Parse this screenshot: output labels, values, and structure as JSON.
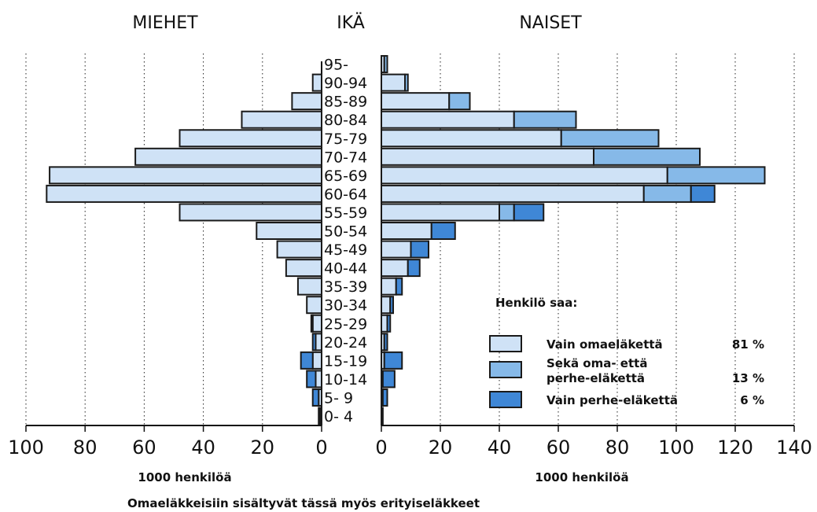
{
  "chart_data": {
    "type": "bar",
    "orientation": "population-pyramid",
    "headers": {
      "left": "MIEHET",
      "center": "IKÄ",
      "right": "NAISET"
    },
    "age_groups": [
      "0- 4",
      "5- 9",
      "10-14",
      "15-19",
      "20-24",
      "25-29",
      "30-34",
      "35-39",
      "40-44",
      "45-49",
      "50-54",
      "55-59",
      "60-64",
      "65-69",
      "70-74",
      "75-79",
      "80-84",
      "85-89",
      "90-94",
      "95-"
    ],
    "x_unit_label": "1000 henkilöä",
    "men_axis": {
      "ticks": [
        0,
        20,
        40,
        60,
        80,
        100
      ],
      "tick_labels": [
        "0",
        "20",
        "40",
        "60",
        "80",
        "100"
      ],
      "xlim": [
        0,
        100
      ],
      "grid": true
    },
    "women_axis": {
      "ticks": [
        0,
        20,
        40,
        60,
        80,
        100,
        120,
        140
      ],
      "tick_labels": [
        "0",
        "20",
        "40",
        "60",
        "80",
        "100",
        "120",
        "140"
      ],
      "xlim": [
        0,
        140
      ],
      "grid": true
    },
    "series_colors": [
      "#cfe2f6",
      "#86b9e8",
      "#3f87d6"
    ],
    "men": {
      "series": [
        {
          "name": "Vain omaeläkettä",
          "values": [
            0.5,
            1,
            2,
            3,
            2,
            3,
            5,
            8,
            12,
            15,
            22,
            48,
            93,
            92,
            63,
            48,
            27,
            10,
            3,
            0
          ]
        },
        {
          "name": "Sekä oma- että perhe-eläkettä",
          "values": [
            0,
            0,
            0,
            0,
            0,
            0,
            0,
            0,
            0,
            0,
            0,
            0,
            0,
            0,
            0,
            0,
            0,
            0,
            0,
            0
          ]
        },
        {
          "name": "Vain perhe-eläkettä",
          "values": [
            0.5,
            2,
            3,
            4,
            1,
            0.5,
            0,
            0,
            0,
            0,
            0,
            0,
            0,
            0,
            0,
            0,
            0,
            0,
            0,
            0
          ]
        }
      ]
    },
    "women": {
      "series": [
        {
          "name": "Vain omaeläkettä",
          "values": [
            0,
            0.5,
            0.5,
            1,
            1,
            2,
            3,
            5,
            9,
            10,
            17,
            40,
            89,
            97,
            72,
            61,
            45,
            23,
            8,
            1
          ]
        },
        {
          "name": "Sekä oma- että perhe-eläkettä",
          "values": [
            0,
            0,
            0,
            0,
            0,
            0,
            0,
            0,
            0,
            0,
            0,
            5,
            16,
            33,
            36,
            33,
            21,
            7,
            1,
            1
          ]
        },
        {
          "name": "Vain perhe-eläkettä",
          "values": [
            0.5,
            1.5,
            4,
            6,
            1,
            1,
            1,
            2,
            4,
            6,
            8,
            10,
            8,
            0,
            0,
            0,
            0,
            0,
            0,
            0
          ]
        }
      ]
    },
    "legend": {
      "title": "Henkilö saa:",
      "position": "bottom-right",
      "entries": [
        {
          "line1": "Vain omaeläkettä",
          "line2": "",
          "pct": "81 %"
        },
        {
          "line1": "Sekä oma- että",
          "line2": "perhe-eläkettä",
          "pct": "13 %"
        },
        {
          "line1": "Vain perhe-eläkettä",
          "line2": "",
          "pct": "6 %"
        }
      ]
    },
    "footnote": "Omaeläkkeisiin sisältyvät tässä myös erityiseläkkeet"
  }
}
